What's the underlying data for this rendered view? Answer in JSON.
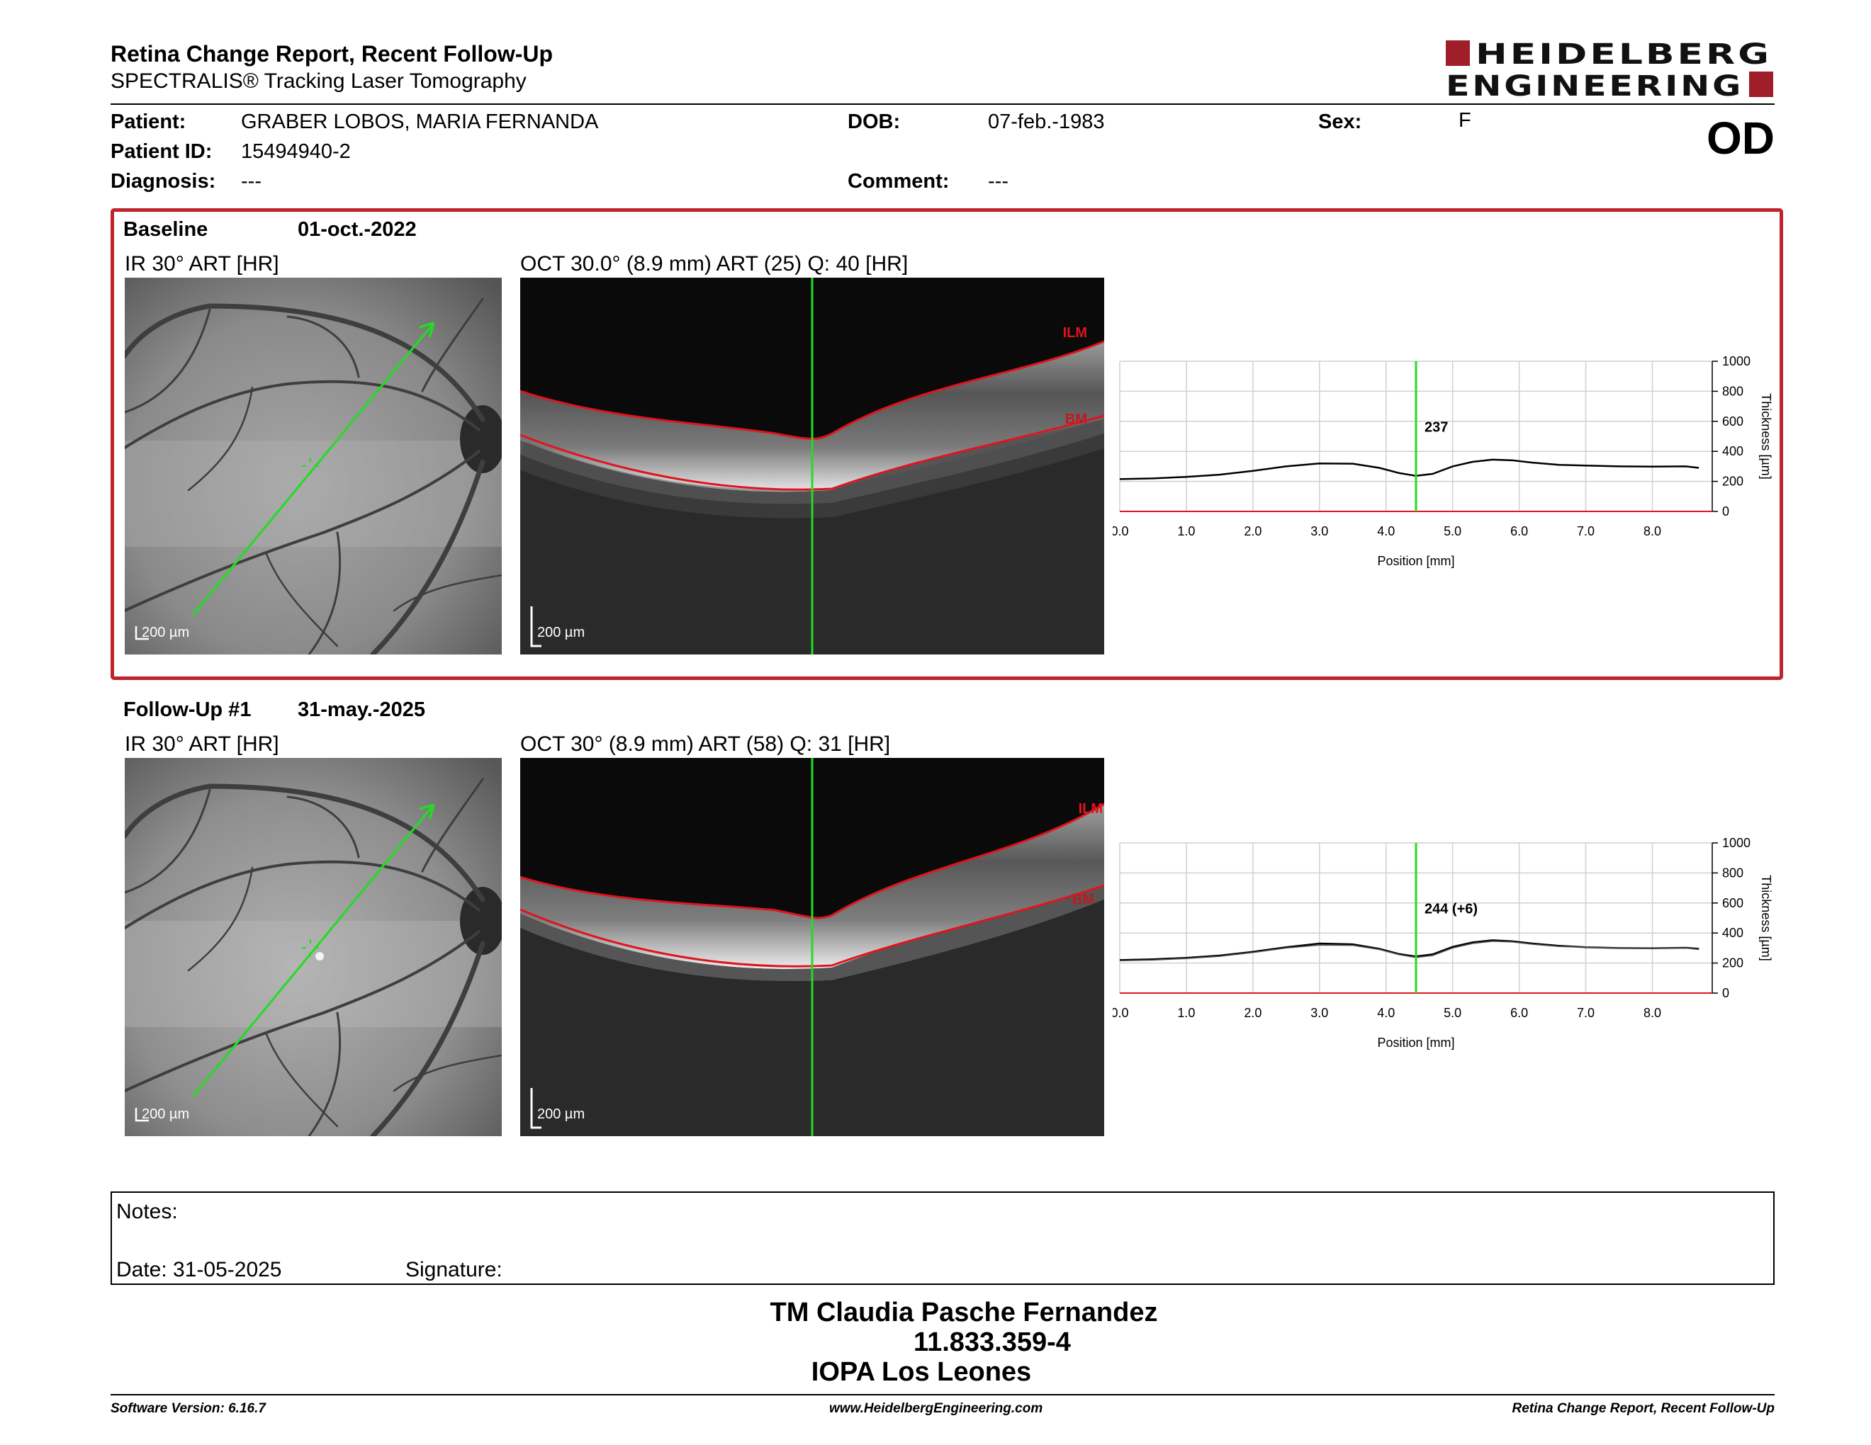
{
  "header": {
    "title": "Retina Change Report, Recent Follow-Up",
    "subtitle": "SPECTRALIS® Tracking Laser Tomography",
    "logo_line1": "HEIDELBERG",
    "logo_line2": "ENGINEERING",
    "eye": "OD"
  },
  "patient": {
    "name_label": "Patient:",
    "name": "GRABER LOBOS, MARIA FERNANDA",
    "id_label": "Patient ID:",
    "id": "15494940-2",
    "diagnosis_label": "Diagnosis:",
    "diagnosis": "---",
    "dob_label": "DOB:",
    "dob": "07-feb.-1983",
    "comment_label": "Comment:",
    "comment": "---",
    "sex_label": "Sex:",
    "sex": "F"
  },
  "baseline": {
    "label": "Baseline",
    "date": "01-oct.-2022",
    "ir_caption": "IR 30° ART [HR]",
    "oct_caption": "OCT 30.0° (8.9 mm) ART (25) Q: 40 [HR]",
    "scale": "200 µm",
    "ilm": "ILM",
    "bm": "BM",
    "marker_value": "237"
  },
  "followup": {
    "label": "Follow-Up #1",
    "date": "31-may.-2025",
    "ir_caption": "IR 30° ART [HR]",
    "oct_caption": "OCT 30° (8.9 mm) ART (58) Q: 31 [HR]",
    "scale": "200 µm",
    "ilm": "ILM",
    "bm": "BM",
    "marker_value": "244 (+6)"
  },
  "colors": {
    "accent": "#c0232c",
    "scan_line": "#22dd22",
    "segmentation": "#e0141e"
  },
  "chart_data": [
    {
      "type": "line",
      "xlabel": "Position [mm]",
      "ylabel": "Thickness [µm]",
      "xlim": [
        0,
        8.9
      ],
      "ylim": [
        0,
        1000
      ],
      "x_ticks": [
        "0.0",
        "1.0",
        "2.0",
        "3.0",
        "4.0",
        "5.0",
        "6.0",
        "7.0",
        "8.0"
      ],
      "y_ticks": [
        "0",
        "200",
        "400",
        "600",
        "800",
        "1000"
      ],
      "marker_x": 4.45,
      "marker_label": "237",
      "grid": true,
      "series": [
        {
          "x": [
            0,
            0.5,
            1.0,
            1.5,
            2.0,
            2.5,
            3.0,
            3.5,
            3.9,
            4.2,
            4.45,
            4.7,
            5.0,
            5.3,
            5.6,
            5.9,
            6.2,
            6.6,
            7.0,
            7.5,
            8.0,
            8.5,
            8.7
          ],
          "y": [
            215,
            220,
            230,
            245,
            270,
            300,
            320,
            318,
            290,
            255,
            237,
            250,
            300,
            330,
            345,
            340,
            325,
            310,
            305,
            300,
            298,
            300,
            290
          ]
        }
      ]
    },
    {
      "type": "line",
      "xlabel": "Position [mm]",
      "ylabel": "Thickness [µm]",
      "xlim": [
        0,
        8.9
      ],
      "ylim": [
        0,
        1000
      ],
      "x_ticks": [
        "0.0",
        "1.0",
        "2.0",
        "3.0",
        "4.0",
        "5.0",
        "6.0",
        "7.0",
        "8.0"
      ],
      "y_ticks": [
        "0",
        "200",
        "400",
        "600",
        "800",
        "1000"
      ],
      "marker_x": 4.45,
      "marker_label": "244 (+6)",
      "grid": true,
      "series": [
        {
          "x": [
            0,
            0.5,
            1.0,
            1.5,
            2.0,
            2.5,
            3.0,
            3.5,
            3.9,
            4.2,
            4.45,
            4.7,
            5.0,
            5.3,
            5.6,
            5.9,
            6.2,
            6.6,
            7.0,
            7.5,
            8.0,
            8.5,
            8.7
          ],
          "y": [
            220,
            225,
            235,
            250,
            275,
            305,
            330,
            325,
            295,
            260,
            244,
            258,
            308,
            338,
            352,
            345,
            330,
            315,
            305,
            300,
            298,
            302,
            295
          ]
        },
        {
          "x": [
            0,
            0.5,
            1.0,
            1.5,
            2.0,
            2.5,
            3.0,
            3.5,
            3.9,
            4.2,
            4.45,
            4.7,
            5.0,
            5.3,
            5.6,
            5.9,
            6.2,
            6.6,
            7.0,
            7.5,
            8.0,
            8.5,
            8.7
          ],
          "y": [
            215,
            220,
            230,
            245,
            270,
            300,
            320,
            318,
            290,
            255,
            237,
            250,
            300,
            330,
            345,
            340,
            325,
            310,
            305,
            300,
            298,
            300,
            290
          ]
        }
      ]
    }
  ],
  "notes": {
    "notes_label": "Notes:",
    "date_label": "Date: 31-05-2025",
    "signature_label": "Signature:"
  },
  "operator": {
    "name": "TM Claudia Pasche Fernandez",
    "id": "11.833.359-4",
    "location": "IOPA Los Leones"
  },
  "footer": {
    "software": "Software Version: 6.16.7",
    "website": "www.HeidelbergEngineering.com",
    "report": "Retina Change Report, Recent Follow-Up"
  }
}
